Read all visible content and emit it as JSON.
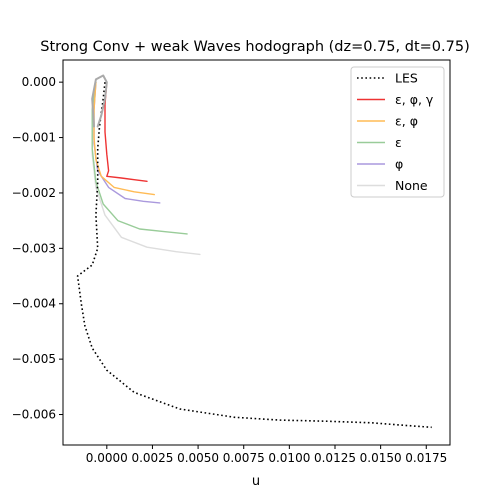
{
  "chart_data": {
    "type": "line",
    "title": "Strong Conv + weak Waves hodograph (dz=0.75, dt=0.75)",
    "xlabel": "u",
    "ylabel": "",
    "xlim": [
      -0.0024,
      0.0188
    ],
    "ylim": [
      -0.00655,
      0.0004
    ],
    "xticks": [
      0.0,
      0.0025,
      0.005,
      0.0075,
      0.01,
      0.0125,
      0.015,
      0.0175
    ],
    "xtick_labels": [
      "0.0000",
      "0.0025",
      "0.0050",
      "0.0075",
      "0.0100",
      "0.0125",
      "0.0150",
      "0.0175"
    ],
    "yticks": [
      0.0,
      -0.001,
      -0.002,
      -0.003,
      -0.004,
      -0.005,
      -0.006
    ],
    "ytick_labels": [
      "0.000",
      "−0.001",
      "−0.002",
      "−0.003",
      "−0.004",
      "−0.005",
      "−0.006"
    ],
    "legend_position": "top-right",
    "series": [
      {
        "name": "LES",
        "color": "#000000",
        "style": "dotted",
        "points": [
          [
            -0.0001,
            0.0
          ],
          [
            -0.0002,
            -0.0003
          ],
          [
            -0.0004,
            -0.0008
          ],
          [
            -0.0005,
            -0.0012
          ],
          [
            -0.0005,
            -0.0018
          ],
          [
            -0.0006,
            -0.0024
          ],
          [
            -0.0005,
            -0.003
          ],
          [
            -0.0008,
            -0.0033
          ],
          [
            -0.0016,
            -0.0035
          ],
          [
            -0.0014,
            -0.004
          ],
          [
            -0.0012,
            -0.0044
          ],
          [
            -0.0008,
            -0.0048
          ],
          [
            0.0,
            -0.0052
          ],
          [
            0.0015,
            -0.0056
          ],
          [
            0.004,
            -0.0059
          ],
          [
            0.007,
            -0.00605
          ],
          [
            0.0095,
            -0.0061
          ],
          [
            0.012,
            -0.00612
          ],
          [
            0.0145,
            -0.00615
          ],
          [
            0.0165,
            -0.0062
          ],
          [
            0.0178,
            -0.00623
          ]
        ]
      },
      {
        "name": "ε, φ, γ",
        "color": "#ee3333",
        "style": "solid",
        "points": [
          [
            0.0,
            0.0
          ],
          [
            -0.0001,
            -0.0004
          ],
          [
            -0.0001,
            -0.0009
          ],
          [
            0.0,
            -0.0013
          ],
          [
            0.0001,
            -0.0016
          ],
          [
            0.0,
            -0.0017
          ],
          [
            0.0008,
            -0.00173
          ],
          [
            0.0015,
            -0.00176
          ],
          [
            0.0022,
            -0.00179
          ]
        ]
      },
      {
        "name": "ε, φ",
        "color": "#ffbb55",
        "style": "solid",
        "points": [
          [
            -0.0006,
            0.0
          ],
          [
            -0.0007,
            -0.0005
          ],
          [
            -0.0007,
            -0.001
          ],
          [
            -0.0006,
            -0.0014
          ],
          [
            -0.0003,
            -0.0017
          ],
          [
            0.0004,
            -0.0019
          ],
          [
            0.0015,
            -0.00198
          ],
          [
            0.0026,
            -0.00203
          ]
        ]
      },
      {
        "name": "ε",
        "color": "#99cc99",
        "style": "solid",
        "points": [
          [
            -0.0006,
            0.0
          ],
          [
            -0.0008,
            -0.0005
          ],
          [
            -0.0008,
            -0.0012
          ],
          [
            -0.0006,
            -0.0018
          ],
          [
            -0.0002,
            -0.0022
          ],
          [
            0.0006,
            -0.0025
          ],
          [
            0.0018,
            -0.00265
          ],
          [
            0.0032,
            -0.0027
          ],
          [
            0.0044,
            -0.00274
          ]
        ]
      },
      {
        "name": "φ",
        "color": "#aa99dd",
        "style": "solid",
        "points": [
          [
            -0.0006,
            0.0
          ],
          [
            -0.0007,
            -0.0005
          ],
          [
            -0.0007,
            -0.0011
          ],
          [
            -0.0005,
            -0.0016
          ],
          [
            0.0001,
            -0.0019
          ],
          [
            0.001,
            -0.0021
          ],
          [
            0.002,
            -0.00215
          ],
          [
            0.0029,
            -0.00218
          ]
        ]
      },
      {
        "name": "None",
        "color": "#dddddd",
        "style": "solid",
        "points": [
          [
            -0.0006,
            0.0
          ],
          [
            -0.0008,
            -0.0005
          ],
          [
            -0.0008,
            -0.0013
          ],
          [
            -0.0006,
            -0.0019
          ],
          [
            -0.0001,
            -0.0024
          ],
          [
            0.0008,
            -0.0028
          ],
          [
            0.0022,
            -0.00298
          ],
          [
            0.0038,
            -0.00306
          ],
          [
            0.0051,
            -0.00311
          ]
        ]
      }
    ],
    "grey_loop": {
      "color": "#aaaaaa",
      "points": [
        [
          -0.0007,
          -0.0008
        ],
        [
          -0.0008,
          -0.0003
        ],
        [
          -0.0006,
          5e-05
        ],
        [
          -0.0002,
          0.00012
        ],
        [
          0.0,
          0.0
        ],
        [
          -0.0001,
          -0.0003
        ],
        [
          -0.0003,
          -0.0006
        ],
        [
          -0.0005,
          -0.0008
        ]
      ]
    }
  }
}
